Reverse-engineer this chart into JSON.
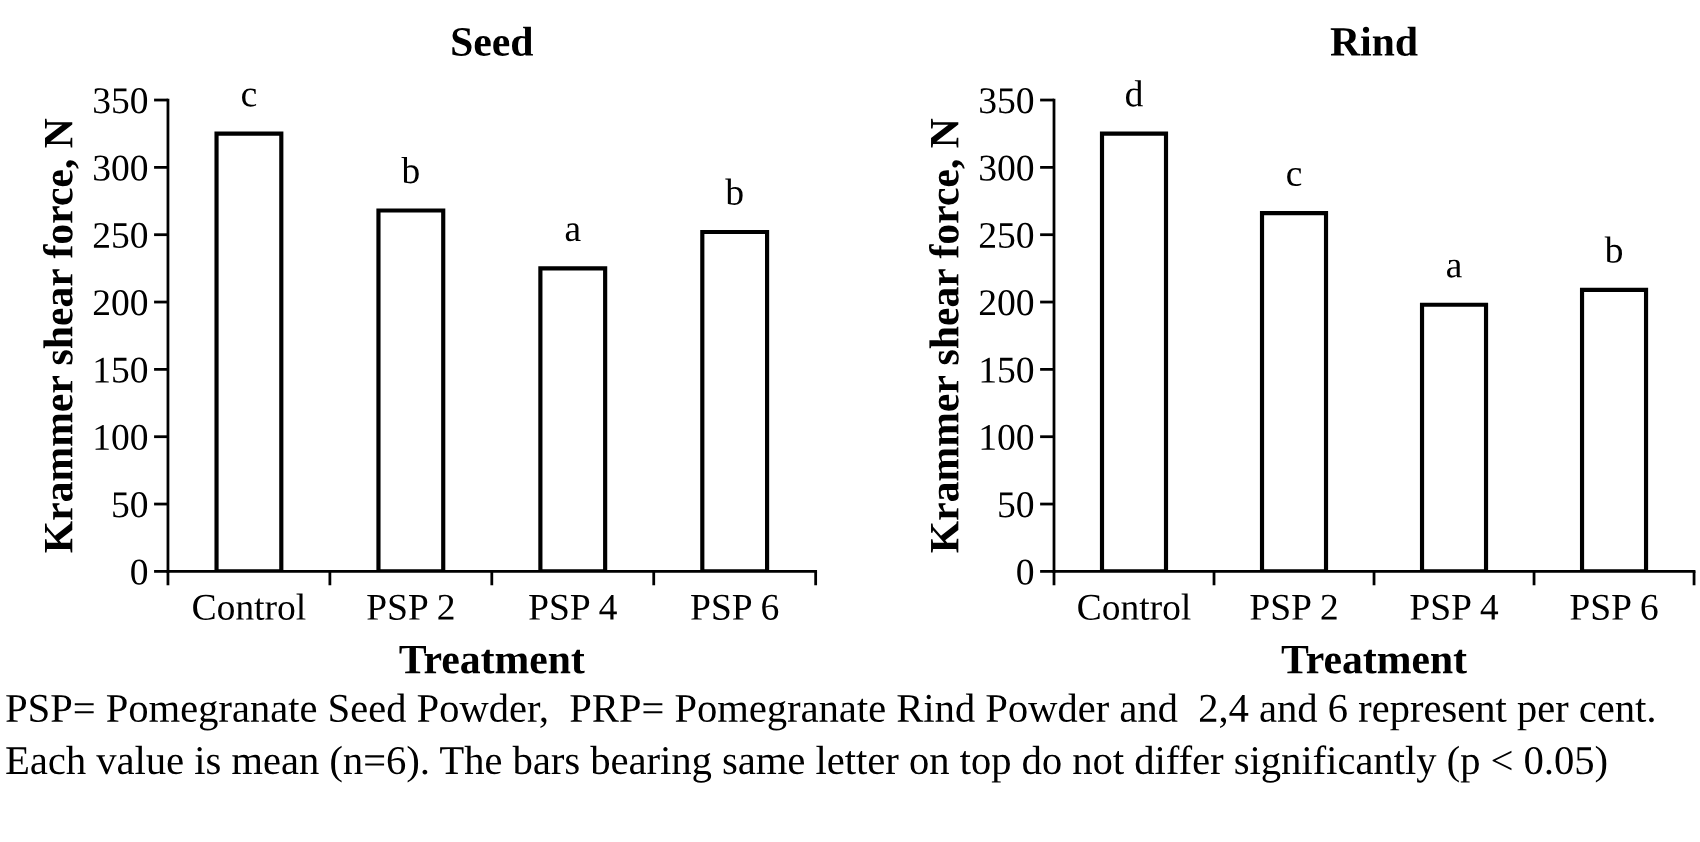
{
  "chart_data": [
    {
      "type": "bar",
      "title": "Seed",
      "categories": [
        "Control",
        "PSP 2",
        "PSP 4",
        "PSP 6"
      ],
      "values": [
        325,
        268,
        225,
        252
      ],
      "color": "#ffffff",
      "xlabel": "Treatment",
      "ylabel": "Krammer shear force, N",
      "ylim": [
        0,
        350
      ],
      "yticks": [
        0,
        50,
        100,
        150,
        200,
        250,
        300,
        350
      ],
      "grid": false,
      "legend": false,
      "annotations": [
        {
          "text": "c",
          "x": "Control",
          "y": 325
        },
        {
          "text": "b",
          "x": "PSP 2",
          "y": 268
        },
        {
          "text": "a",
          "x": "PSP 4",
          "y": 225
        },
        {
          "text": "b",
          "x": "PSP 6",
          "y": 252
        },
        "PSP= Pomegranate Seed Powder,  PRP= Pomegranate Rind Powder and  2,4 and 6 represent per cent.",
        "Each value is mean (n=6). The bars bearing same letter on top do not differ significantly (p < 0.05)"
      ]
    },
    {
      "type": "bar",
      "title": "Rind",
      "categories": [
        "Control",
        "PSP 2",
        "PSP 4",
        "PSP 6"
      ],
      "values": [
        325,
        266,
        198,
        209
      ],
      "color": "#ffffff",
      "xlabel": "Treatment",
      "ylabel": "Krammer shear force, N",
      "ylim": [
        0,
        350
      ],
      "yticks": [
        0,
        50,
        100,
        150,
        200,
        250,
        300,
        350
      ],
      "grid": false,
      "legend": false,
      "annotations": [
        {
          "text": "d",
          "x": "Control",
          "y": 325
        },
        {
          "text": "c",
          "x": "PSP 2",
          "y": 266
        },
        {
          "text": "a",
          "x": "PSP 4",
          "y": 198
        },
        {
          "text": "b",
          "x": "PSP 6",
          "y": 209
        }
      ]
    }
  ]
}
